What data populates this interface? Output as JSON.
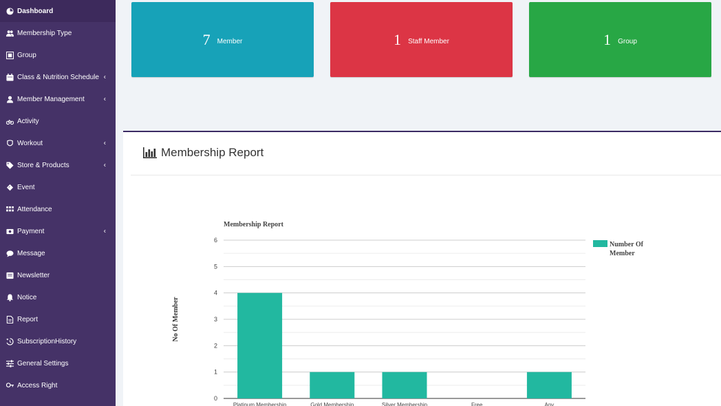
{
  "sidebar": {
    "items": [
      {
        "label": "Dashboard",
        "icon": "dashboard-icon",
        "active": true,
        "chevron": false
      },
      {
        "label": "Membership Type",
        "icon": "users-icon",
        "active": false,
        "chevron": false
      },
      {
        "label": "Group",
        "icon": "group-icon",
        "active": false,
        "chevron": false
      },
      {
        "label": "Class & Nutrition Schedule",
        "icon": "calendar-icon",
        "active": false,
        "chevron": true
      },
      {
        "label": "Member Management",
        "icon": "user-icon",
        "active": false,
        "chevron": true
      },
      {
        "label": "Activity",
        "icon": "bicycle-icon",
        "active": false,
        "chevron": false
      },
      {
        "label": "Workout",
        "icon": "workout-icon",
        "active": false,
        "chevron": true
      },
      {
        "label": "Store & Products",
        "icon": "tags-icon",
        "active": false,
        "chevron": true
      },
      {
        "label": "Event",
        "icon": "ticket-icon",
        "active": false,
        "chevron": false
      },
      {
        "label": "Attendance",
        "icon": "attendance-icon",
        "active": false,
        "chevron": false
      },
      {
        "label": "Payment",
        "icon": "money-icon",
        "active": false,
        "chevron": true
      },
      {
        "label": "Message",
        "icon": "comment-icon",
        "active": false,
        "chevron": false
      },
      {
        "label": "Newsletter",
        "icon": "newsletter-icon",
        "active": false,
        "chevron": false
      },
      {
        "label": "Notice",
        "icon": "bell-icon",
        "active": false,
        "chevron": false
      },
      {
        "label": "Report",
        "icon": "file-icon",
        "active": false,
        "chevron": false
      },
      {
        "label": "SubscriptionHistory",
        "icon": "history-icon",
        "active": false,
        "chevron": false
      },
      {
        "label": "General Settings",
        "icon": "sliders-icon",
        "active": false,
        "chevron": false
      },
      {
        "label": "Access Right",
        "icon": "key-icon",
        "active": false,
        "chevron": false
      }
    ],
    "chevron_glyph": "‹"
  },
  "stats": [
    {
      "count": "7",
      "label": "Member",
      "color": "#17a2b8"
    },
    {
      "count": "1",
      "label": "Staff Member",
      "color": "#dc3545"
    },
    {
      "count": "1",
      "label": "Group",
      "color": "#28a745"
    }
  ],
  "report": {
    "title": "Membership Report",
    "icon": "bar-chart-icon"
  },
  "chart_data": {
    "type": "bar",
    "title": "Membership Report",
    "ylabel": "No Of Member",
    "xlabel": "",
    "categories": [
      "Platinum Membership",
      "Gold Membership",
      "Silver Membership",
      "Free",
      "Any"
    ],
    "series": [
      {
        "name": "Number Of Member",
        "values": [
          4,
          1,
          1,
          0,
          1
        ],
        "color": "#22b8a0"
      }
    ],
    "ylim": [
      0,
      6
    ],
    "yticks": [
      0,
      1,
      2,
      3,
      4,
      5,
      6
    ],
    "grid": true,
    "legend": "right"
  }
}
